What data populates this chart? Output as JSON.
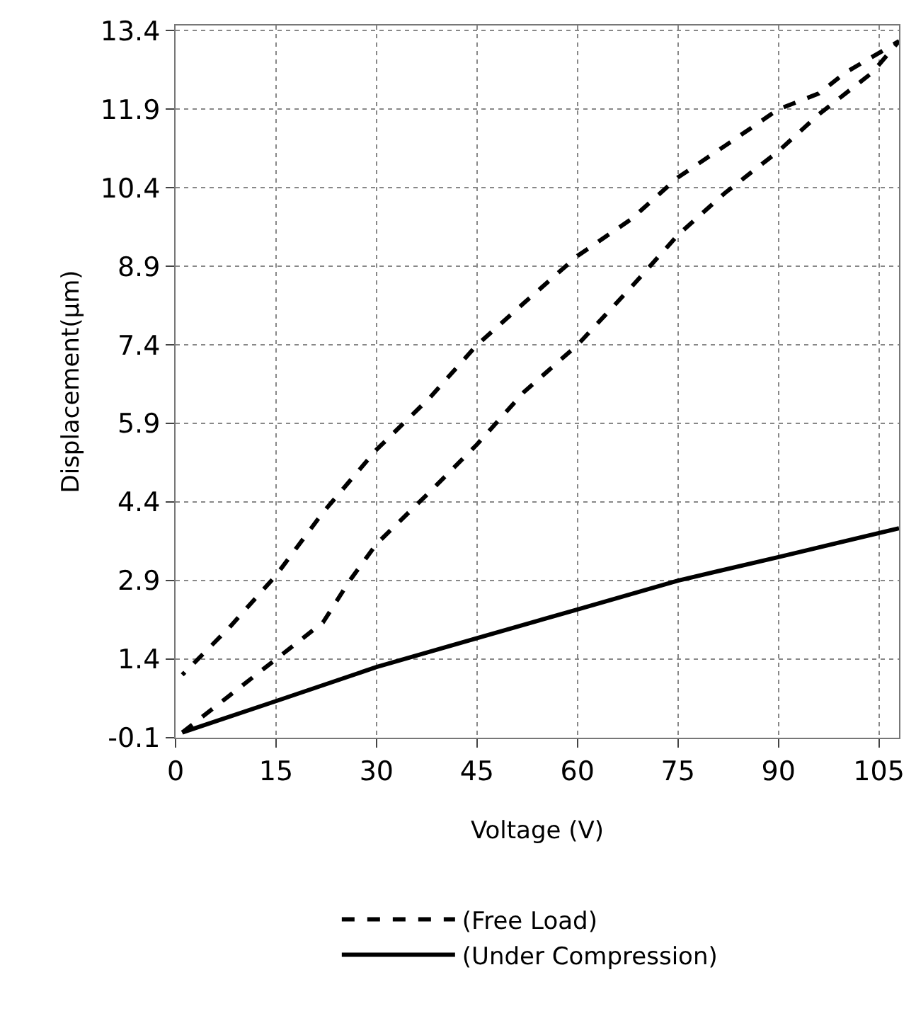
{
  "chart_data": {
    "type": "line",
    "xlabel": "Voltage (V)",
    "ylabel": "Displacement(µm)",
    "xlim": [
      0,
      108
    ],
    "ylim": [
      -0.1,
      13.5
    ],
    "xticks": [
      0,
      15,
      30,
      45,
      60,
      75,
      90,
      105
    ],
    "yticks": [
      -0.1,
      1.4,
      2.9,
      4.4,
      5.9,
      7.4,
      8.9,
      10.4,
      11.9,
      13.4
    ],
    "grid": true,
    "legend": "bottom",
    "marker": "none",
    "series": [
      {
        "name": "(Free Load)",
        "color": "#000000",
        "line_style": "dashed",
        "x": [
          1,
          8,
          15,
          22,
          26,
          30,
          38,
          45,
          52,
          60,
          68,
          75,
          82,
          90,
          96,
          100,
          104,
          108,
          104,
          100,
          96,
          90,
          82,
          75,
          68,
          60,
          52,
          45,
          38,
          30,
          22,
          15,
          8,
          1
        ],
        "values": [
          0,
          0.7,
          1.4,
          2.1,
          2.9,
          3.6,
          4.6,
          5.5,
          6.5,
          7.4,
          8.5,
          9.5,
          10.3,
          11.1,
          11.8,
          12.2,
          12.6,
          13.2,
          12.9,
          12.6,
          12.2,
          11.9,
          11.2,
          10.6,
          9.8,
          9.1,
          8.2,
          7.4,
          6.4,
          5.4,
          4.2,
          3.0,
          2.0,
          1.1
        ]
      },
      {
        "name": "(Under Compression)",
        "color": "#000000",
        "line_style": "solid",
        "x": [
          1,
          15,
          30,
          45,
          60,
          75,
          90,
          108
        ],
        "values": [
          0,
          0.6,
          1.25,
          1.8,
          2.35,
          2.9,
          3.35,
          3.9
        ]
      }
    ]
  }
}
